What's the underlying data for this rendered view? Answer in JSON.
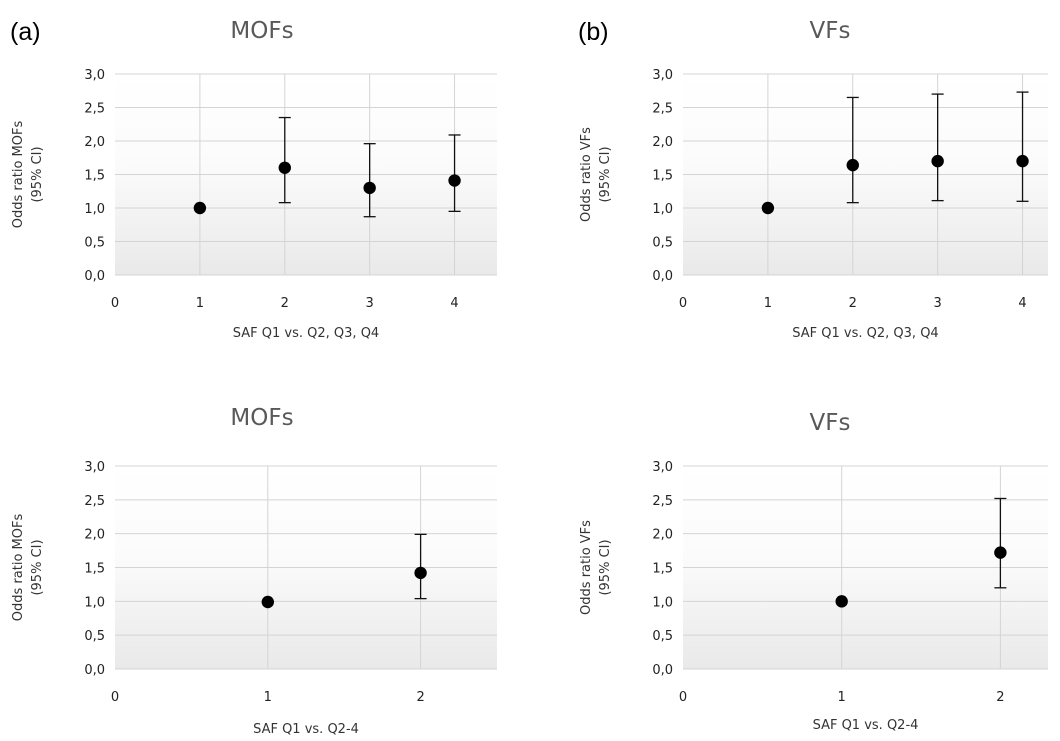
{
  "chart_data": [
    {
      "panel_label": "(a)",
      "type": "scatter",
      "title": "MOFs",
      "xlabel": "SAF Q1 vs. Q2, Q3, Q4",
      "ylabel_lines": [
        "Odds ratio MOFs",
        "(95% CI)"
      ],
      "xlim": [
        0,
        4.5
      ],
      "ylim": [
        0,
        3
      ],
      "x_ticks": [
        "0",
        "1",
        "2",
        "3",
        "4"
      ],
      "y_ticks": [
        "0,0",
        "0,5",
        "1,0",
        "1,5",
        "2,0",
        "2,5",
        "3,0"
      ],
      "grid": true,
      "series": [
        {
          "x": [
            1,
            2,
            3,
            4
          ],
          "y": [
            1.0,
            1.6,
            1.3,
            1.41
          ],
          "ci_lower": [
            null,
            1.08,
            0.87,
            0.95
          ],
          "ci_upper": [
            null,
            2.35,
            1.96,
            2.09
          ]
        }
      ]
    },
    {
      "panel_label": "(b)",
      "type": "scatter",
      "title": "VFs",
      "xlabel": "SAF Q1 vs. Q2, Q3, Q4",
      "ylabel_lines": [
        "Odds ratio VFs",
        "(95% CI)"
      ],
      "xlim": [
        0,
        4.3
      ],
      "ylim": [
        0,
        3
      ],
      "x_ticks": [
        "0",
        "1",
        "2",
        "3",
        "4"
      ],
      "y_ticks": [
        "0,0",
        "0,5",
        "1,0",
        "1,5",
        "2,0",
        "2,5",
        "3,0"
      ],
      "grid": true,
      "series": [
        {
          "x": [
            1,
            2,
            3,
            4
          ],
          "y": [
            1.0,
            1.64,
            1.7,
            1.7
          ],
          "ci_lower": [
            null,
            1.08,
            1.11,
            1.1
          ],
          "ci_upper": [
            null,
            2.65,
            2.7,
            2.73
          ]
        }
      ]
    },
    {
      "panel_label": "",
      "type": "scatter",
      "title": "MOFs",
      "xlabel": "SAF Q1 vs. Q2-4",
      "ylabel_lines": [
        "Odds ratio MOFs",
        "(95% CI)"
      ],
      "xlim": [
        0,
        2.5
      ],
      "ylim": [
        0,
        3
      ],
      "x_ticks": [
        "0",
        "1",
        "2"
      ],
      "y_ticks": [
        "0,0",
        "0,5",
        "1,0",
        "1,5",
        "2,0",
        "2,5",
        "3,0"
      ],
      "grid": true,
      "series": [
        {
          "x": [
            1,
            2
          ],
          "y": [
            0.99,
            1.42
          ],
          "ci_lower": [
            null,
            1.04
          ],
          "ci_upper": [
            null,
            1.99
          ]
        }
      ]
    },
    {
      "panel_label": "",
      "type": "scatter",
      "title": "VFs",
      "xlabel": "SAF Q1 vs. Q2-4",
      "ylabel_lines": [
        "Odds ratio VFs",
        "(95% CI)"
      ],
      "xlim": [
        0,
        2.3
      ],
      "ylim": [
        0,
        3
      ],
      "x_ticks": [
        "0",
        "1",
        "2"
      ],
      "y_ticks": [
        "0,0",
        "0,5",
        "1,0",
        "1,5",
        "2,0",
        "2,5",
        "3,0"
      ],
      "grid": true,
      "series": [
        {
          "x": [
            1,
            2
          ],
          "y": [
            1.0,
            1.72
          ],
          "ci_lower": [
            null,
            1.2
          ],
          "ci_upper": [
            null,
            2.52
          ]
        }
      ]
    }
  ]
}
